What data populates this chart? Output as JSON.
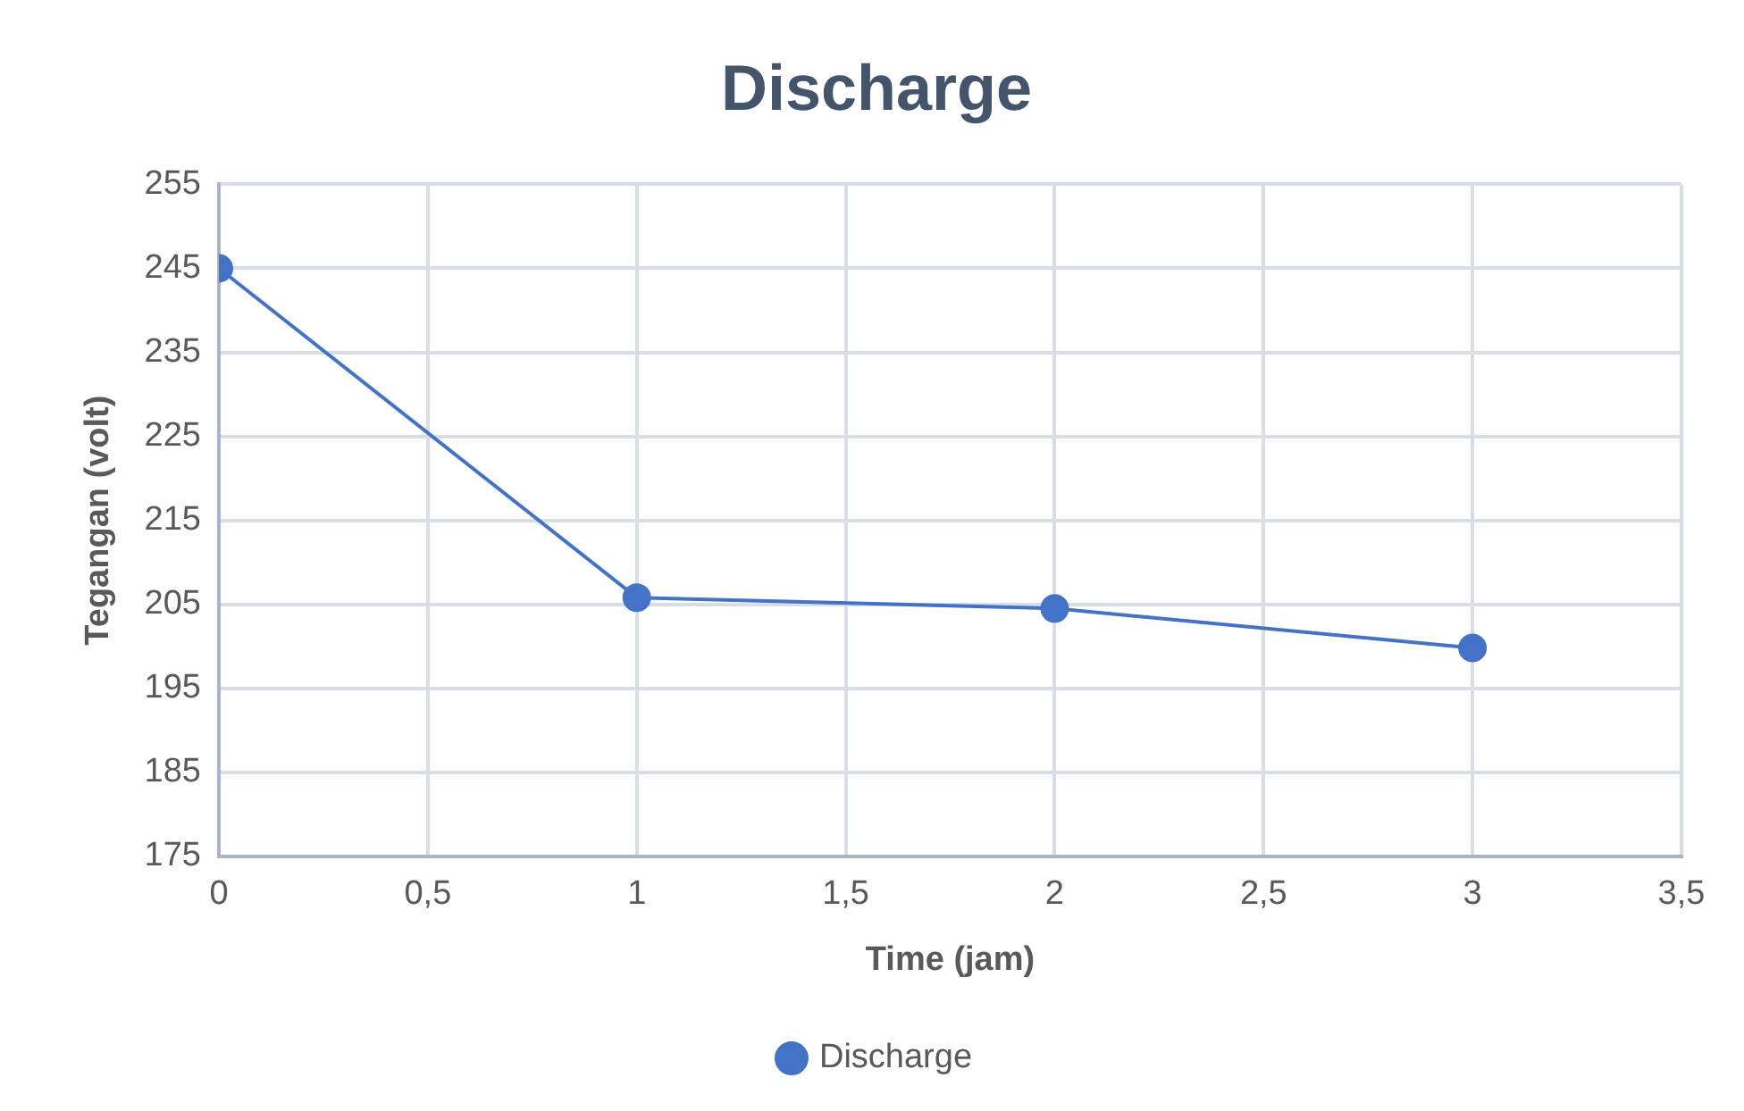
{
  "chart_data": {
    "type": "line",
    "title": "Discharge",
    "xlabel": "Time (jam)",
    "ylabel": "Tegangan (volt)",
    "x": [
      0,
      1,
      2,
      3
    ],
    "series": [
      {
        "name": "Discharge",
        "color": "#4472c4",
        "values": [
          245,
          205.8,
          204.5,
          199.8
        ]
      }
    ],
    "xlim": [
      0,
      3.5
    ],
    "xticks": [
      0,
      {
        "value": 0.5,
        "label": "0,5"
      },
      1,
      {
        "value": 1.5,
        "label": "1,5"
      },
      2,
      {
        "value": 2.5,
        "label": "2,5"
      },
      3,
      {
        "value": 3.5,
        "label": "3,5"
      }
    ],
    "ylim": [
      175,
      255
    ],
    "yticks": [
      175,
      185,
      195,
      205,
      215,
      225,
      235,
      245,
      255
    ],
    "grid": true,
    "legend": "bottom",
    "marker": "circle",
    "line_style": "solid"
  }
}
